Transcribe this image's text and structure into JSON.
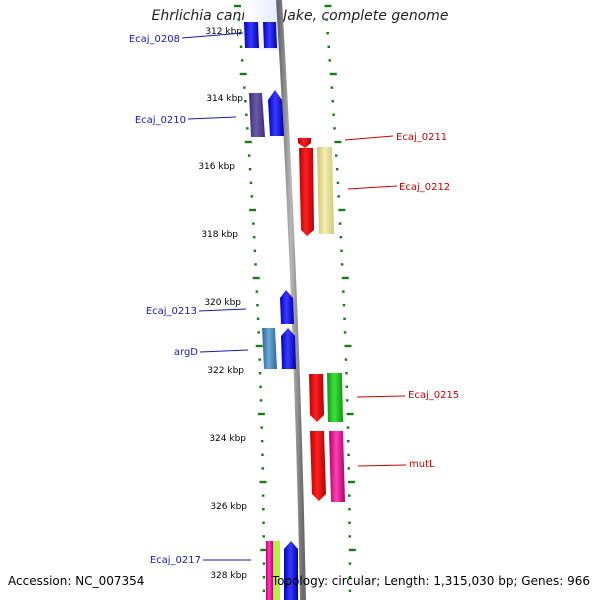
{
  "title": "Ehrlichia canis str. Jake, complete genome",
  "footer": {
    "accession": "Accession: NC_007354",
    "summary": "Topology: circular; Length: 1,315,030 bp; Genes: 966"
  },
  "colors": {
    "backbone": "#8c8c8c",
    "tick": "#1a7a1a",
    "label_left": "#1a1aaa",
    "label_right": "#cc0000"
  },
  "scale_labels": [
    "312 kbp",
    "314 kbp",
    "316 kbp",
    "318 kbp",
    "320 kbp",
    "322 kbp",
    "324 kbp",
    "326 kbp",
    "328 kbp"
  ],
  "genes": [
    {
      "id": "Ecaj_0208",
      "label": "Ecaj_0208",
      "strand": "minus"
    },
    {
      "id": "Ecaj_0210",
      "label": "Ecaj_0210",
      "strand": "minus"
    },
    {
      "id": "Ecaj_0211",
      "label": "Ecaj_0211",
      "strand": "plus"
    },
    {
      "id": "Ecaj_0212",
      "label": "Ecaj_0212",
      "strand": "plus"
    },
    {
      "id": "Ecaj_0213",
      "label": "Ecaj_0213",
      "strand": "minus"
    },
    {
      "id": "argD",
      "label": "argD",
      "strand": "minus"
    },
    {
      "id": "Ecaj_0215",
      "label": "Ecaj_0215",
      "strand": "plus"
    },
    {
      "id": "mutL",
      "label": "mutL",
      "strand": "plus"
    },
    {
      "id": "Ecaj_0217",
      "label": "Ecaj_0217",
      "strand": "minus"
    }
  ]
}
